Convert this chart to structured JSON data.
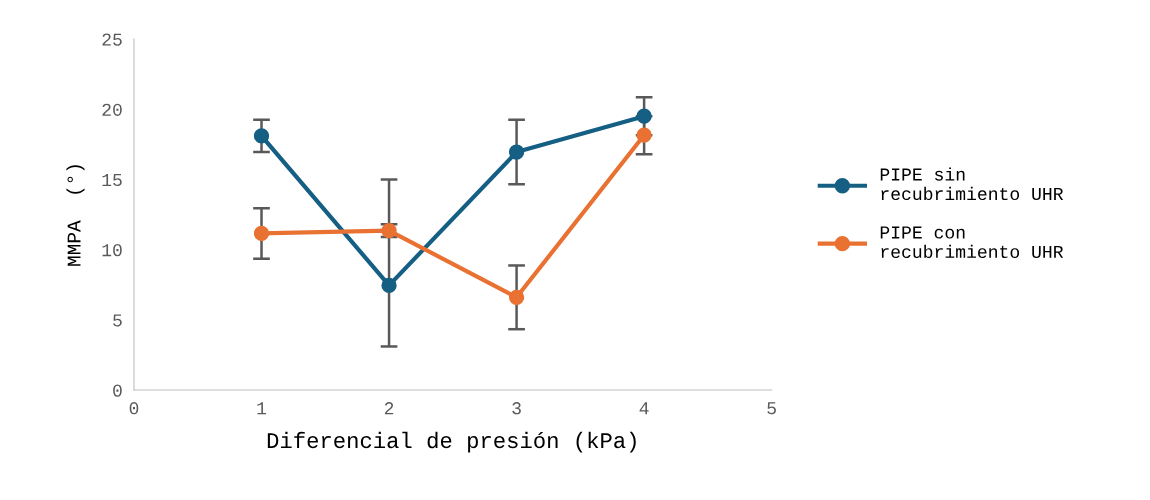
{
  "chart_data": {
    "type": "line",
    "xlabel": "Diferencial de presión (kPa)",
    "ylabel": "MMPA  (°)",
    "x": [
      1,
      2,
      3,
      4
    ],
    "series": [
      {
        "name": "PIPE sin recubrimiento UHR",
        "color": "#155f84",
        "values": [
          18.1,
          7.45,
          16.95,
          19.5
        ],
        "errors": [
          1.15,
          [
            3.1,
            15.0
          ],
          2.3,
          1.35
        ]
      },
      {
        "name": "PIPE con recubrimiento UHR",
        "color": "#e97132",
        "values": [
          11.15,
          11.35,
          6.6,
          18.15
        ],
        "errors": [
          1.8,
          0.45,
          2.27,
          1.35
        ]
      }
    ],
    "xlim": [
      0,
      5
    ],
    "xticks": [
      0,
      1,
      2,
      3,
      4,
      5
    ],
    "ylim": [
      0,
      25
    ],
    "yticks": [
      0,
      5,
      10,
      15,
      20,
      25
    ],
    "grid": false,
    "legend": "right",
    "marker": "circle",
    "line_style": "solid"
  }
}
